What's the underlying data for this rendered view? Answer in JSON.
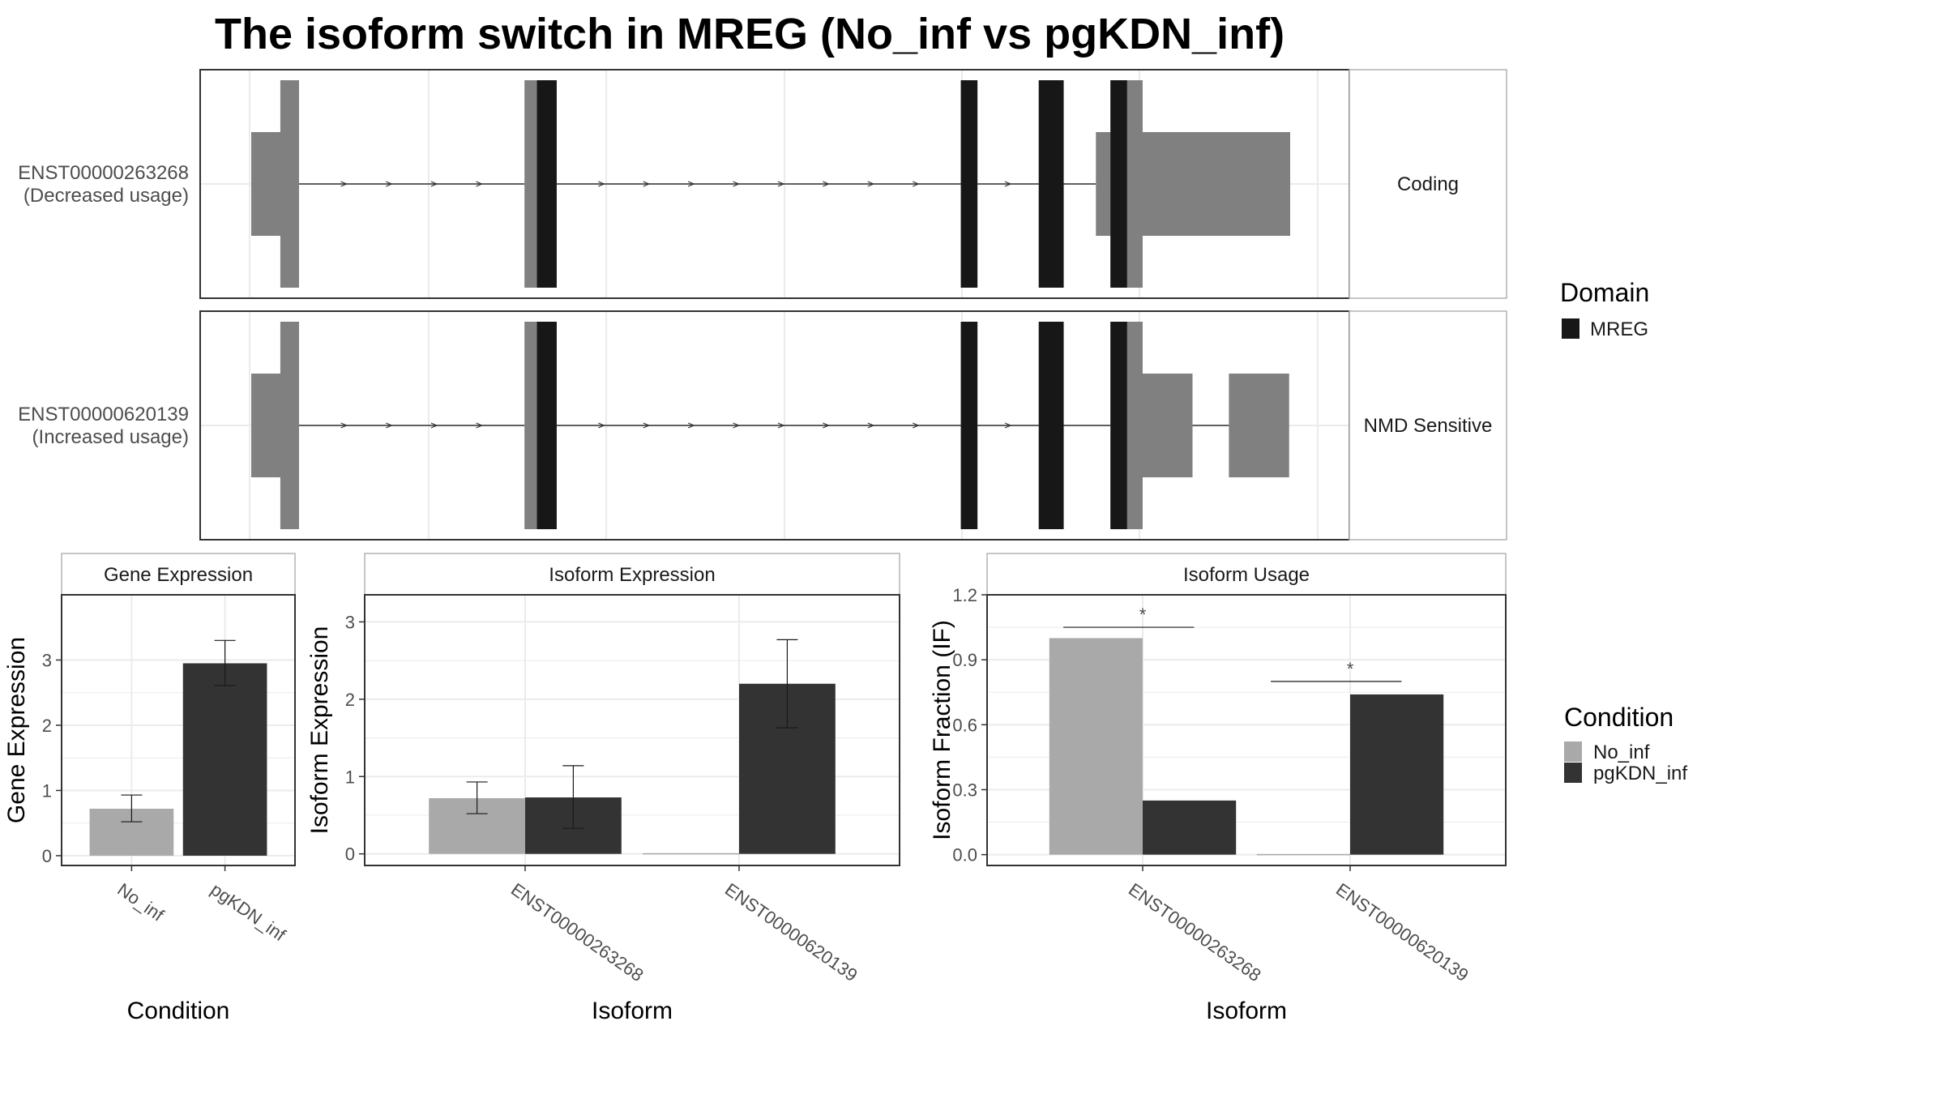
{
  "title": "The isoform switch in MREG (No_inf vs pgKDN_inf)",
  "colors": {
    "no_inf": "#a9a9a9",
    "pgkdn_inf": "#333333",
    "utr": "#808080",
    "domain": "#171717",
    "grid": "#ebebeb",
    "panel_border": "#333333",
    "strip_border": "#b3b3b3"
  },
  "chart_data": [
    {
      "type": "gene-structure",
      "legend_title": "Domain",
      "legend_items": [
        "MREG"
      ],
      "tracks": [
        {
          "name": "ENST00000263268",
          "sub": "(Decreased usage)",
          "facet": "Coding",
          "noncoding": [
            {
              "start": 0.0,
              "end": 0.042
            },
            {
              "start": 0.813,
              "end": 1.0
            }
          ],
          "cds": [
            {
              "start": 0.028,
              "end": 0.046
            },
            {
              "start": 0.263,
              "end": 0.294
            },
            {
              "start": 0.683,
              "end": 0.699
            },
            {
              "start": 0.758,
              "end": 0.782
            },
            {
              "start": 0.827,
              "end": 0.858
            }
          ],
          "domains": [
            {
              "start": 0.275,
              "end": 0.294
            },
            {
              "start": 0.683,
              "end": 0.699
            },
            {
              "start": 0.758,
              "end": 0.782
            },
            {
              "start": 0.827,
              "end": 0.843
            }
          ]
        },
        {
          "name": "ENST00000620139",
          "sub": "(Increased usage)",
          "facet": "NMD Sensitive",
          "noncoding": [
            {
              "start": 0.0,
              "end": 0.042
            },
            {
              "start": 0.855,
              "end": 0.906
            },
            {
              "start": 0.941,
              "end": 0.999
            }
          ],
          "cds": [
            {
              "start": 0.028,
              "end": 0.046
            },
            {
              "start": 0.263,
              "end": 0.294
            },
            {
              "start": 0.683,
              "end": 0.699
            },
            {
              "start": 0.758,
              "end": 0.782
            },
            {
              "start": 0.827,
              "end": 0.858
            }
          ],
          "domains": [
            {
              "start": 0.275,
              "end": 0.294
            },
            {
              "start": 0.683,
              "end": 0.699
            },
            {
              "start": 0.758,
              "end": 0.782
            },
            {
              "start": 0.827,
              "end": 0.843
            }
          ]
        }
      ]
    },
    {
      "type": "bar",
      "strip": "Gene Expression",
      "xlabel": "Condition",
      "ylabel": "Gene Expression",
      "categories": [
        "No_inf",
        "pgKDN_inf"
      ],
      "values": [
        0.72,
        2.95
      ],
      "error_low": [
        0.52,
        2.61
      ],
      "error_high": [
        0.93,
        3.3
      ],
      "ylim": [
        -0.15,
        4.0
      ],
      "yticks": [
        0,
        1,
        2,
        3
      ]
    },
    {
      "type": "bar",
      "strip": "Isoform Expression",
      "xlabel": "Isoform",
      "ylabel": "Isoform Expression",
      "categories": [
        "ENST00000263268",
        "ENST00000620139"
      ],
      "series": [
        {
          "name": "No_inf",
          "values": [
            0.72,
            0.0
          ],
          "error_low": [
            0.52,
            null
          ],
          "error_high": [
            0.93,
            null
          ]
        },
        {
          "name": "pgKDN_inf",
          "values": [
            0.73,
            2.2
          ],
          "error_low": [
            0.33,
            1.63
          ],
          "error_high": [
            1.14,
            2.77
          ]
        }
      ],
      "ylim": [
        -0.15,
        3.35
      ],
      "yticks": [
        0,
        1,
        2,
        3
      ]
    },
    {
      "type": "bar",
      "strip": "Isoform Usage",
      "xlabel": "Isoform",
      "ylabel": "Isoform Fraction (IF)",
      "categories": [
        "ENST00000263268",
        "ENST00000620139"
      ],
      "series": [
        {
          "name": "No_inf",
          "values": [
            1.0,
            0.0
          ]
        },
        {
          "name": "pgKDN_inf",
          "values": [
            0.25,
            0.74
          ]
        }
      ],
      "ylim": [
        -0.05,
        1.2
      ],
      "yticks": [
        "0.0",
        "0.3",
        "0.6",
        "0.9",
        "1.2"
      ],
      "significance": [
        {
          "category": "ENST00000263268",
          "y": 1.05,
          "label": "*"
        },
        {
          "category": "ENST00000620139",
          "y": 0.8,
          "label": "*"
        }
      ]
    }
  ],
  "condition_legend": {
    "title": "Condition",
    "items": [
      "No_inf",
      "pgKDN_inf"
    ]
  }
}
